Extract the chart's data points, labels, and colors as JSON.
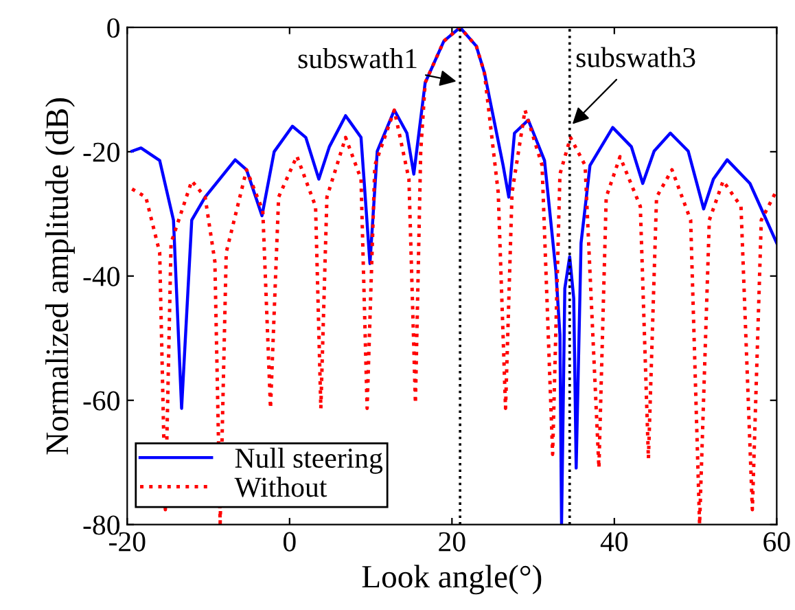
{
  "chart_data": {
    "type": "line",
    "xlabel": "Look angle(°)",
    "ylabel": "Normalized amplitude (dB)",
    "xlim": [
      -20,
      60
    ],
    "ylim": [
      -80,
      0
    ],
    "xticks": [
      -20,
      0,
      20,
      40,
      60
    ],
    "yticks": [
      -80,
      -60,
      -40,
      -20,
      0
    ],
    "grid": false,
    "legend": "bottom left",
    "series": [
      {
        "name": "Null steering",
        "color": "#0000ff",
        "line_style": "solid",
        "x": [
          -19.4,
          -18.3,
          -16.0,
          -14.3,
          -13.3,
          -12.05,
          -10.4,
          -6.7,
          -5.3,
          -3.4,
          -1.9,
          0.35,
          2.0,
          3.6,
          4.9,
          6.9,
          8.8,
          9.9,
          10.8,
          12.9,
          14.45,
          15.3,
          16.7,
          19.0,
          21.0,
          23.0,
          24.0,
          26.3,
          27.0,
          27.7,
          29.4,
          31.4,
          32.8,
          33.3,
          33.5,
          33.9,
          34.5,
          35.0,
          35.3,
          35.9,
          37.0,
          39.8,
          42.1,
          43.5,
          44.9,
          46.9,
          49.1,
          51.0,
          52.2,
          53.9,
          56.7,
          60.0
        ],
        "values": [
          -19.9,
          -19.4,
          -21.4,
          -31,
          -61.3,
          -31,
          -27.3,
          -21.3,
          -22.9,
          -30.3,
          -20,
          -15.9,
          -17.7,
          -24.4,
          -19.2,
          -14.2,
          -17.7,
          -38,
          -19.9,
          -13.3,
          -17,
          -23.6,
          -8.9,
          -2.2,
          0,
          -3,
          -7.3,
          -22.2,
          -27.3,
          -17,
          -14.9,
          -21.4,
          -39.2,
          -49.5,
          -80,
          -42,
          -36.9,
          -43.6,
          -70.9,
          -34.7,
          -22.2,
          -16.1,
          -19.2,
          -25.1,
          -19.9,
          -17,
          -19.9,
          -29.2,
          -24.4,
          -21.3,
          -25.1,
          -34.7
        ]
      },
      {
        "name": "Without",
        "color": "#ff0000",
        "line_style": "dotted",
        "x": [
          -19.4,
          -17.7,
          -16.0,
          -15.3,
          -14.6,
          -12.05,
          -10.4,
          -9.2,
          -8.55,
          -7.8,
          -5.3,
          -3.3,
          -2.35,
          -1.35,
          0.9,
          3.2,
          3.85,
          4.6,
          6.9,
          8.8,
          9.55,
          10.5,
          12.9,
          14.7,
          15.5,
          16.15,
          16.7,
          19.0,
          21.0,
          23.0,
          24.0,
          25.7,
          26.6,
          27.4,
          29.0,
          31.1,
          32.4,
          33.3,
          34.6,
          36.4,
          38.1,
          39.0,
          40.7,
          43.2,
          44.2,
          45.2,
          47.1,
          49.4,
          50.5,
          51.7,
          53.4,
          55.6,
          57.0,
          58.1,
          60.0
        ],
        "values": [
          -26,
          -27.3,
          -36.2,
          -77.6,
          -34.7,
          -24.7,
          -27.3,
          -37.7,
          -79.8,
          -36.2,
          -22.9,
          -29.5,
          -61.3,
          -27.3,
          -20.7,
          -28.8,
          -61.3,
          -27.3,
          -17.7,
          -24.4,
          -61.3,
          -22.2,
          -13.3,
          -24.4,
          -60.5,
          -20,
          -8.9,
          -2.2,
          0,
          -3,
          -7.3,
          -26.6,
          -61.3,
          -26.6,
          -13.3,
          -22.2,
          -68.7,
          -23.6,
          -17.7,
          -22.2,
          -70.9,
          -27.3,
          -20.8,
          -28.8,
          -69.4,
          -27.3,
          -22.9,
          -31,
          -80,
          -31,
          -24.7,
          -28.8,
          -77.6,
          -31,
          -26.2
        ]
      }
    ],
    "ref_lines": [
      {
        "axis": "x",
        "value": 21,
        "label": "subswath1",
        "color": "#000000",
        "line_style": "dotted"
      },
      {
        "axis": "x",
        "value": 34.5,
        "label": "subswath3",
        "color": "#000000",
        "line_style": "dotted"
      }
    ]
  }
}
